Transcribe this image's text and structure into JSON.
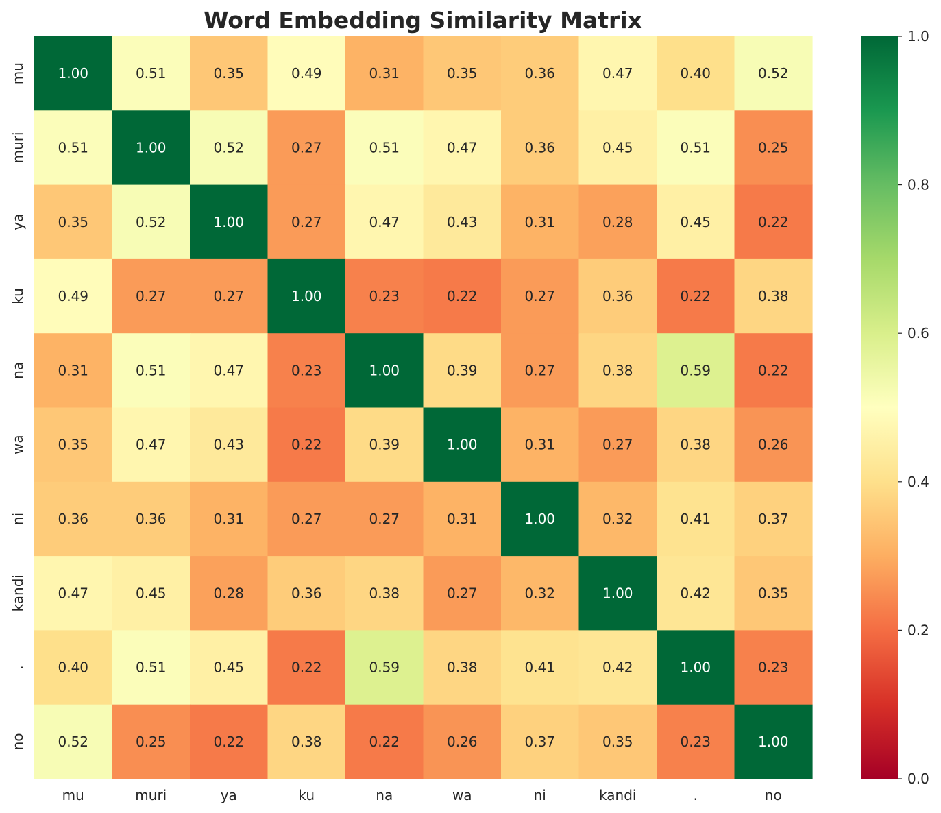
{
  "chart_data": {
    "type": "heatmap",
    "title": "Word Embedding Similarity Matrix",
    "xlabel": "",
    "ylabel": "",
    "x_categories": [
      "mu",
      "muri",
      "ya",
      "ku",
      "na",
      "wa",
      "ni",
      "kandi",
      ".",
      "no"
    ],
    "y_categories": [
      "mu",
      "muri",
      "ya",
      "ku",
      "na",
      "wa",
      "ni",
      "kandi",
      ".",
      "no"
    ],
    "values": [
      [
        1.0,
        0.51,
        0.35,
        0.49,
        0.31,
        0.35,
        0.36,
        0.47,
        0.4,
        0.52
      ],
      [
        0.51,
        1.0,
        0.52,
        0.27,
        0.51,
        0.47,
        0.36,
        0.45,
        0.51,
        0.25
      ],
      [
        0.35,
        0.52,
        1.0,
        0.27,
        0.47,
        0.43,
        0.31,
        0.28,
        0.45,
        0.22
      ],
      [
        0.49,
        0.27,
        0.27,
        1.0,
        0.23,
        0.22,
        0.27,
        0.36,
        0.22,
        0.38
      ],
      [
        0.31,
        0.51,
        0.47,
        0.23,
        1.0,
        0.39,
        0.27,
        0.38,
        0.59,
        0.22
      ],
      [
        0.35,
        0.47,
        0.43,
        0.22,
        0.39,
        1.0,
        0.31,
        0.27,
        0.38,
        0.26
      ],
      [
        0.36,
        0.36,
        0.31,
        0.27,
        0.27,
        0.31,
        1.0,
        0.32,
        0.41,
        0.37
      ],
      [
        0.47,
        0.45,
        0.28,
        0.36,
        0.38,
        0.27,
        0.32,
        1.0,
        0.42,
        0.35
      ],
      [
        0.4,
        0.51,
        0.45,
        0.22,
        0.59,
        0.38,
        0.41,
        0.42,
        1.0,
        0.23
      ],
      [
        0.52,
        0.25,
        0.22,
        0.38,
        0.22,
        0.26,
        0.37,
        0.35,
        0.23,
        1.0
      ]
    ],
    "value_format": "2 decimals",
    "colormap": "RdYlGn",
    "colorbar": {
      "range": [
        0.0,
        1.0
      ],
      "ticks": [
        "0.0",
        "0.2",
        "0.4",
        "0.6",
        "0.8",
        "1.0"
      ]
    },
    "grid": false,
    "legend": "colorbar-right"
  }
}
